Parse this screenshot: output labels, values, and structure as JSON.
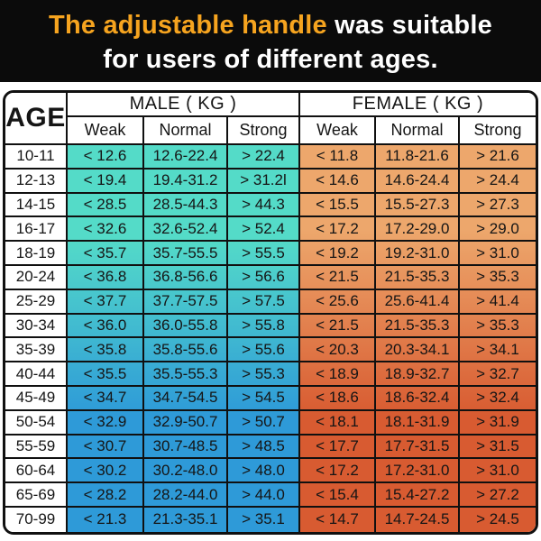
{
  "title": {
    "highlight": "The adjustable handle",
    "rest": " was suitable",
    "line2": "for users of different ages."
  },
  "colors": {
    "banner_bg": "#0b0b0b",
    "title_highlight": "#f6a41f",
    "title_text": "#ffffff",
    "grid_line": "#101010",
    "cell_text": "#151515",
    "male_gradient_top": "#54dbc8",
    "male_gradient_bottom": "#2e9ad8",
    "female_gradient_top": "#eda76c",
    "female_gradient_bottom": "#d85b31"
  },
  "chart_data": {
    "type": "table",
    "title": "The adjustable handle was suitable for users of different ages.",
    "header": {
      "age": "AGE",
      "male_group": "MALE ( KG )",
      "female_group": "FEMALE ( KG )",
      "sub": [
        "Weak",
        "Normal",
        "Strong",
        "Weak",
        "Normal",
        "Strong"
      ]
    },
    "rows": [
      [
        "10-11",
        "< 12.6",
        "12.6-22.4",
        "> 22.4",
        "< 11.8",
        "11.8-21.6",
        "> 21.6"
      ],
      [
        "12-13",
        "< 19.4",
        "19.4-31.2",
        "> 31.2l",
        "< 14.6",
        "14.6-24.4",
        "> 24.4"
      ],
      [
        "14-15",
        "< 28.5",
        "28.5-44.3",
        "> 44.3",
        "< 15.5",
        "15.5-27.3",
        "> 27.3"
      ],
      [
        "16-17",
        "< 32.6",
        "32.6-52.4",
        "> 52.4",
        "< 17.2",
        "17.2-29.0",
        "> 29.0"
      ],
      [
        "18-19",
        "< 35.7",
        "35.7-55.5",
        "> 55.5",
        "< 19.2",
        "19.2-31.0",
        "> 31.0"
      ],
      [
        "20-24",
        "< 36.8",
        "36.8-56.6",
        "> 56.6",
        "< 21.5",
        "21.5-35.3",
        "> 35.3"
      ],
      [
        "25-29",
        "< 37.7",
        "37.7-57.5",
        "> 57.5",
        "< 25.6",
        "25.6-41.4",
        "> 41.4"
      ],
      [
        "30-34",
        "< 36.0",
        "36.0-55.8",
        "> 55.8",
        "< 21.5",
        "21.5-35.3",
        "> 35.3"
      ],
      [
        "35-39",
        "< 35.8",
        "35.8-55.6",
        "> 55.6",
        "< 20.3",
        "20.3-34.1",
        "> 34.1"
      ],
      [
        "40-44",
        "< 35.5",
        "35.5-55.3",
        "> 55.3",
        "< 18.9",
        "18.9-32.7",
        "> 32.7"
      ],
      [
        "45-49",
        "< 34.7",
        "34.7-54.5",
        "> 54.5",
        "< 18.6",
        "18.6-32.4",
        "> 32.4"
      ],
      [
        "50-54",
        "< 32.9",
        "32.9-50.7",
        "> 50.7",
        "< 18.1",
        "18.1-31.9",
        "> 31.9"
      ],
      [
        "55-59",
        "< 30.7",
        "30.7-48.5",
        "> 48.5",
        "< 17.7",
        "17.7-31.5",
        "> 31.5"
      ],
      [
        "60-64",
        "< 30.2",
        "30.2-48.0",
        "> 48.0",
        "< 17.2",
        "17.2-31.0",
        "> 31.0"
      ],
      [
        "65-69",
        "< 28.2",
        "28.2-44.0",
        "> 44.0",
        "< 15.4",
        "15.4-27.2",
        "> 27.2"
      ],
      [
        "70-99",
        "< 21.3",
        "21.3-35.1",
        "> 35.1",
        "< 14.7",
        "14.7-24.5",
        "> 24.5"
      ]
    ]
  }
}
